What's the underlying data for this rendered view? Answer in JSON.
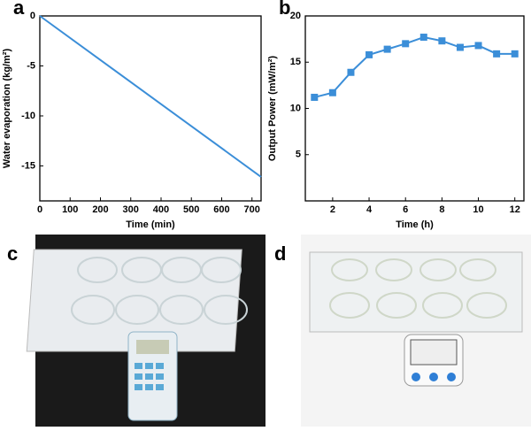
{
  "chart_data": [
    {
      "type": "line",
      "label": "a",
      "x_label": "Time (min)",
      "y_label": "Water evaporation (kg/m²)",
      "x": [
        0,
        730
      ],
      "series": [
        {
          "color": "#3b8ed8",
          "values": [
            0,
            -16.1
          ]
        }
      ],
      "xlim": [
        0,
        730
      ],
      "xticks": [
        0,
        100,
        200,
        300,
        400,
        500,
        600,
        700
      ],
      "ylim": [
        -18.5,
        0
      ],
      "yticks": [
        -15,
        -10,
        -5,
        0
      ]
    },
    {
      "type": "line",
      "label": "b",
      "x_label": "Time (h)",
      "y_label": "Output Power (mW/m²)",
      "marker": "square",
      "x": [
        1,
        2,
        3,
        4,
        5,
        6,
        7,
        8,
        9,
        10,
        11,
        12
      ],
      "series": [
        {
          "color": "#3b8ed8",
          "values": [
            11.2,
            11.7,
            13.9,
            15.8,
            16.4,
            17.0,
            17.7,
            17.3,
            16.6,
            16.8,
            15.9,
            15.9
          ]
        }
      ],
      "xlim": [
        0.5,
        12.5
      ],
      "xticks": [
        2,
        4,
        6,
        8,
        10,
        12
      ],
      "ylim": [
        0,
        20
      ],
      "yticks": [
        5,
        10,
        15,
        20
      ]
    }
  ],
  "photos": [
    {
      "label": "c"
    },
    {
      "label": "d"
    }
  ]
}
